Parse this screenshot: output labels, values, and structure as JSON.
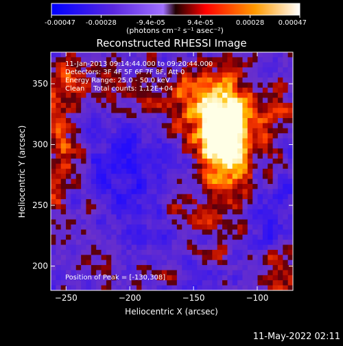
{
  "colorbar": {
    "ticks": [
      "-0.00047",
      "-0.00028",
      "-9.4e-05",
      "9.4e-05",
      "0.00028",
      "0.00047"
    ],
    "units_label": "(photons cm⁻² s⁻¹ asec⁻²)",
    "colors": [
      "#0000ff",
      "#6a2bd9",
      "#b07cff",
      "#ff0000",
      "#ff7f00",
      "#ffff7f",
      "#ffffff"
    ]
  },
  "info": {
    "time_range": "11-Jan-2013 09:14:44.000 to 09:20:44.000",
    "detectors": "Detectors: 3F 4F 5F 6F 7F 8F, Att 0",
    "energy_range": "Energy Range: 25.0 - 50.0 keV",
    "clean_totals": "Clean    Total counts: 1.12E+04",
    "peak_position": "Position of Peak = [-130,308]"
  },
  "footer_timestamp": "11-May-2022 02:11",
  "chart_data": {
    "type": "heatmap",
    "title": "Reconstructed RHESSI Image",
    "xlabel": "Heliocentric X (arcsec)",
    "ylabel": "Heliocentric Y (arcsec)",
    "xlim": [
      -262,
      -72
    ],
    "ylim": [
      180,
      376
    ],
    "xticks": [
      -250,
      -200,
      -150,
      -100
    ],
    "yticks": [
      200,
      250,
      300,
      350
    ],
    "value_range": [
      -0.00047,
      0.00047
    ],
    "peak": [
      -130,
      308
    ]
  }
}
